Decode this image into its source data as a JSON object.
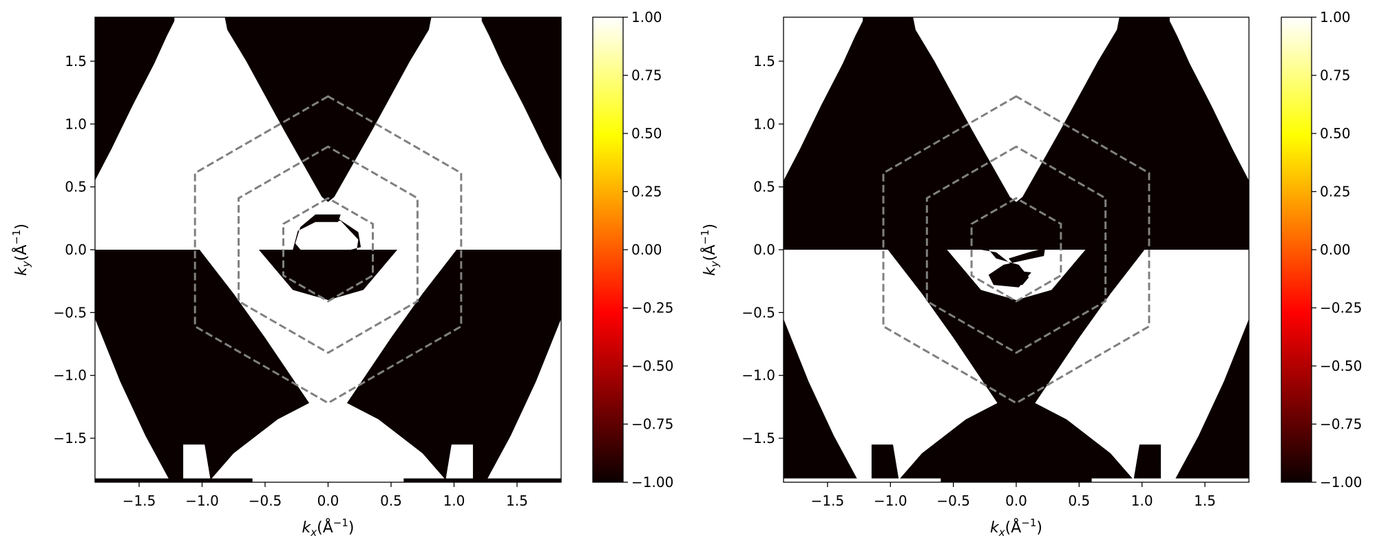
{
  "chart_data": [
    {
      "type": "heatmap",
      "panel": "left",
      "title": "",
      "xlabel": {
        "base": "k",
        "sub": "x",
        "unit_open": "(Å",
        "unit_sup": "−1",
        "unit_close": ")"
      },
      "ylabel": {
        "base": "k",
        "sub": "y",
        "unit_open": "(Å",
        "unit_sup": "−1",
        "unit_close": ")"
      },
      "xlim": [
        -1.85,
        1.85
      ],
      "ylim": [
        -1.85,
        1.85
      ],
      "xticks": [
        -1.5,
        -1.0,
        -0.5,
        0.0,
        0.5,
        1.0,
        1.5
      ],
      "yticks": [
        -1.5,
        -1.0,
        -0.5,
        0.0,
        0.5,
        1.0,
        1.5
      ],
      "xtick_labels": [
        "−1.5",
        "−1.0",
        "−0.5",
        "0.0",
        "0.5",
        "1.0",
        "1.5"
      ],
      "ytick_labels": [
        "−1.5",
        "−1.0",
        "−0.5",
        "0.0",
        "0.5",
        "1.0",
        "1.5"
      ],
      "grid": false,
      "colormap": "hot",
      "value_range": [
        -1,
        1
      ],
      "colorbar_ticks": [
        1.0,
        0.75,
        0.5,
        0.25,
        0.0,
        -0.25,
        -0.5,
        -0.75,
        -1.0
      ],
      "colorbar_labels": [
        "1.00",
        "0.75",
        "0.50",
        "0.25",
        "0.00",
        "−0.25",
        "−0.50",
        "−0.75",
        "−1.00"
      ],
      "values": "binary map of ±1: upper half (ky>0) mostly white (+1) with dark (−1) wedges; lower half (ky<0) mostly dark (−1) with white (+1) wedges",
      "hexagons_dashed": [
        {
          "circumradius": 1.22,
          "color": "#808080"
        },
        {
          "circumradius": 0.82,
          "color": "#808080"
        },
        {
          "circumradius": 0.41,
          "color": "#808080"
        }
      ]
    },
    {
      "type": "heatmap",
      "panel": "right",
      "title": "",
      "xlabel": {
        "base": "k",
        "sub": "x",
        "unit_open": "(Å",
        "unit_sup": "−1",
        "unit_close": ")"
      },
      "ylabel": {
        "base": "k",
        "sub": "y",
        "unit_open": "(Å",
        "unit_sup": "−1",
        "unit_close": ")"
      },
      "xlim": [
        -1.85,
        1.85
      ],
      "ylim": [
        -1.85,
        1.85
      ],
      "xticks": [
        -1.5,
        -1.0,
        -0.5,
        0.0,
        0.5,
        1.0,
        1.5
      ],
      "yticks": [
        -1.5,
        -1.0,
        -0.5,
        0.0,
        0.5,
        1.0,
        1.5
      ],
      "xtick_labels": [
        "−1.5",
        "−1.0",
        "−0.5",
        "0.0",
        "0.5",
        "1.0",
        "1.5"
      ],
      "ytick_labels": [
        "−1.5",
        "−1.0",
        "−0.5",
        "0.0",
        "0.5",
        "1.0",
        "1.5"
      ],
      "grid": false,
      "colormap": "hot",
      "value_range": [
        -1,
        1
      ],
      "colorbar_ticks": [
        1.0,
        0.75,
        0.5,
        0.25,
        0.0,
        -0.25,
        -0.5,
        -0.75,
        -1.0
      ],
      "colorbar_labels": [
        "1.00",
        "0.75",
        "0.50",
        "0.25",
        "0.00",
        "−0.25",
        "−0.50",
        "−0.75",
        "−1.00"
      ],
      "values": "inverted binary map of the left panel: upper half mostly dark (−1) with white wedges; lower half mostly white (+1) with a dark triangular wedge",
      "hexagons_dashed": [
        {
          "circumradius": 1.22,
          "color": "#808080"
        },
        {
          "circumradius": 0.82,
          "color": "#808080"
        },
        {
          "circumradius": 0.41,
          "color": "#808080"
        }
      ]
    }
  ],
  "colors": {
    "dark": "#0b0000",
    "light": "#ffffff",
    "hexagon": "#808080"
  }
}
